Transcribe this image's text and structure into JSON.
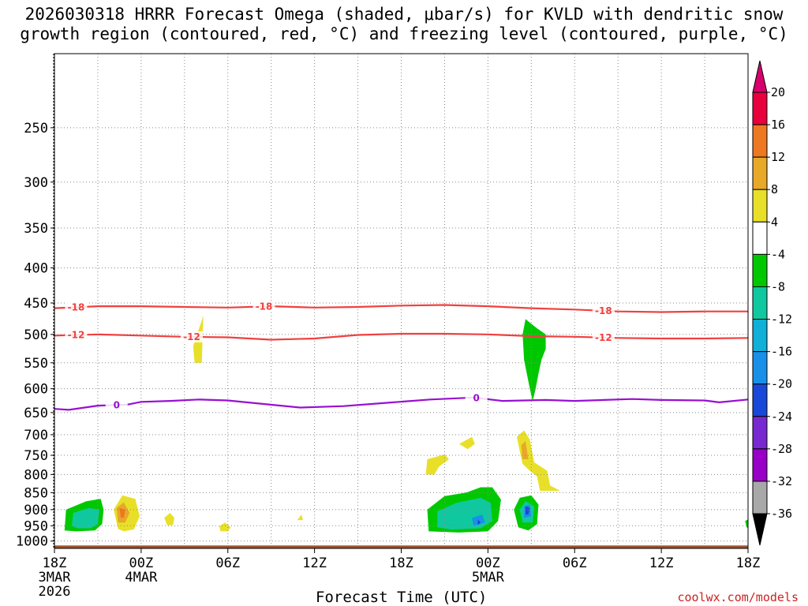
{
  "chart_data": {
    "type": "time-height contour",
    "title_line1": "2026030318 HRRR Forecast Omega (shaded, μbar/s) for KVLD with dendritic snow",
    "title_line2": "growth region (contoured, red, °C) and freezing level (contoured, purple, °C)",
    "xlabel": "Forecast Time (UTC)",
    "credit": "coolwx.com/models",
    "x_range_hours": [
      0,
      48
    ],
    "x_ticks": [
      {
        "h": 0,
        "label": "18Z",
        "sub1": "3MAR",
        "sub2": "2026"
      },
      {
        "h": 6,
        "label": "00Z",
        "sub1": "4MAR",
        "sub2": ""
      },
      {
        "h": 12,
        "label": "06Z",
        "sub1": "",
        "sub2": ""
      },
      {
        "h": 18,
        "label": "12Z",
        "sub1": "",
        "sub2": ""
      },
      {
        "h": 24,
        "label": "18Z",
        "sub1": "",
        "sub2": ""
      },
      {
        "h": 30,
        "label": "00Z",
        "sub1": "5MAR",
        "sub2": ""
      },
      {
        "h": 36,
        "label": "06Z",
        "sub1": "",
        "sub2": ""
      },
      {
        "h": 42,
        "label": "12Z",
        "sub1": "",
        "sub2": ""
      },
      {
        "h": 48,
        "label": "18Z",
        "sub1": "",
        "sub2": ""
      }
    ],
    "y_range_hpa": [
      1025,
      195
    ],
    "y_ticks": [
      250,
      300,
      350,
      400,
      450,
      500,
      550,
      600,
      650,
      700,
      750,
      800,
      850,
      900,
      950,
      1000
    ],
    "surface_hpa": 1015,
    "colorbar": {
      "labels": [
        "20",
        "16",
        "12",
        "8",
        "4",
        "-4",
        "-8",
        "-12",
        "-16",
        "-20",
        "-24",
        "-28",
        "-32",
        "-36"
      ],
      "colors": [
        "#e8003c",
        "#ee7722",
        "#e8a828",
        "#e8e028",
        "#ffffff",
        "#00c800",
        "#10c8a0",
        "#10b0d8",
        "#1890e8",
        "#1848d8",
        "#7828d0",
        "#9800c8",
        "#a8a8a8"
      ],
      "top_arrow_color": "#d8006c",
      "bottom_arrow_color": "#000000"
    },
    "contours": [
      {
        "name": "dgz-18",
        "value": -18,
        "color": "#f04040",
        "label": "-18",
        "label_hours": [
          1.5,
          14.5,
          38
        ],
        "points": [
          [
            0,
            458
          ],
          [
            3,
            455
          ],
          [
            6,
            455
          ],
          [
            9,
            456
          ],
          [
            12,
            457
          ],
          [
            15,
            455
          ],
          [
            18,
            457
          ],
          [
            21,
            456
          ],
          [
            24,
            454
          ],
          [
            27,
            453
          ],
          [
            30,
            455
          ],
          [
            33,
            458
          ],
          [
            36,
            460
          ],
          [
            39,
            463
          ],
          [
            42,
            464
          ],
          [
            45,
            463
          ],
          [
            48,
            463
          ]
        ]
      },
      {
        "name": "dgz-12",
        "value": -12,
        "color": "#f04040",
        "label": "-12",
        "label_hours": [
          1.5,
          9.5,
          38
        ],
        "points": [
          [
            0,
            502
          ],
          [
            3,
            500
          ],
          [
            6,
            502
          ],
          [
            9,
            504
          ],
          [
            12,
            505
          ],
          [
            15,
            509
          ],
          [
            18,
            507
          ],
          [
            21,
            501
          ],
          [
            24,
            499
          ],
          [
            27,
            499
          ],
          [
            30,
            500
          ],
          [
            33,
            503
          ],
          [
            36,
            504
          ],
          [
            39,
            506
          ],
          [
            42,
            507
          ],
          [
            45,
            507
          ],
          [
            48,
            506
          ]
        ]
      },
      {
        "name": "freezing-level",
        "value": 0,
        "color": "#9810d0",
        "label": "0",
        "label_hours": [
          4.3,
          29.2
        ],
        "points": [
          [
            0,
            642
          ],
          [
            1,
            644
          ],
          [
            3,
            635
          ],
          [
            5,
            633
          ],
          [
            6,
            627
          ],
          [
            8,
            625
          ],
          [
            10,
            622
          ],
          [
            12,
            624
          ],
          [
            14,
            630
          ],
          [
            17,
            639
          ],
          [
            20,
            636
          ],
          [
            23,
            629
          ],
          [
            26,
            622
          ],
          [
            29,
            618
          ],
          [
            31,
            625
          ],
          [
            34,
            623
          ],
          [
            36,
            625
          ],
          [
            38,
            623
          ],
          [
            40,
            621
          ],
          [
            42,
            623
          ],
          [
            45,
            624
          ],
          [
            46,
            628
          ],
          [
            48,
            622
          ]
        ]
      }
    ],
    "omega_regions": [
      {
        "level": -8,
        "color": "#00c800",
        "points": [
          [
            0.7,
            965
          ],
          [
            0.8,
            900
          ],
          [
            2.2,
            875
          ],
          [
            3.2,
            868
          ],
          [
            3.4,
            900
          ],
          [
            3.3,
            945
          ],
          [
            2.8,
            965
          ],
          [
            1.5,
            968
          ]
        ]
      },
      {
        "level": -12,
        "color": "#10c8a0",
        "points": [
          [
            1.2,
            950
          ],
          [
            1.3,
            910
          ],
          [
            2.4,
            895
          ],
          [
            3.1,
            900
          ],
          [
            3.0,
            945
          ],
          [
            2.5,
            958
          ],
          [
            1.6,
            958
          ]
        ]
      },
      {
        "level": 4,
        "color": "#e8e028",
        "points": [
          [
            4.4,
            960
          ],
          [
            4.1,
            900
          ],
          [
            4.7,
            858
          ],
          [
            5.6,
            868
          ],
          [
            5.9,
            920
          ],
          [
            5.5,
            962
          ],
          [
            4.8,
            968
          ]
        ]
      },
      {
        "level": 8,
        "color": "#e8a828",
        "points": [
          [
            4.4,
            940
          ],
          [
            4.3,
            895
          ],
          [
            4.8,
            878
          ],
          [
            5.2,
            910
          ],
          [
            4.9,
            940
          ]
        ]
      },
      {
        "level": 12,
        "color": "#ee7722",
        "points": [
          [
            4.6,
            925
          ],
          [
            4.5,
            895
          ],
          [
            4.9,
            900
          ],
          [
            4.8,
            925
          ]
        ]
      },
      {
        "level": 4,
        "color": "#e8e028",
        "points": [
          [
            7.8,
            948
          ],
          [
            7.6,
            925
          ],
          [
            8.0,
            910
          ],
          [
            8.3,
            925
          ],
          [
            8.2,
            948
          ]
        ]
      },
      {
        "level": 4,
        "color": "#e8e028",
        "points": [
          [
            11.5,
            968
          ],
          [
            11.4,
            952
          ],
          [
            11.8,
            940
          ],
          [
            12.2,
            955
          ],
          [
            12.0,
            968
          ]
        ]
      },
      {
        "level": 4,
        "color": "#e8e028",
        "points": [
          [
            9.7,
            550
          ],
          [
            9.6,
            520
          ],
          [
            10.3,
            470
          ],
          [
            10.2,
            550
          ]
        ]
      },
      {
        "level": 4,
        "color": "#e8e028",
        "points": [
          [
            16.8,
            932
          ],
          [
            17.1,
            915
          ],
          [
            17.2,
            932
          ]
        ]
      },
      {
        "level": -8,
        "color": "#00c800",
        "points": [
          [
            25.9,
            968
          ],
          [
            25.8,
            900
          ],
          [
            27.0,
            860
          ],
          [
            28.5,
            850
          ],
          [
            29.5,
            835
          ],
          [
            30.3,
            835
          ],
          [
            30.9,
            870
          ],
          [
            30.7,
            935
          ],
          [
            30.0,
            968
          ],
          [
            28.0,
            972
          ]
        ]
      },
      {
        "level": -12,
        "color": "#10c8a0",
        "points": [
          [
            26.5,
            955
          ],
          [
            26.5,
            905
          ],
          [
            27.8,
            880
          ],
          [
            29.5,
            865
          ],
          [
            30.2,
            880
          ],
          [
            30.3,
            935
          ],
          [
            29.5,
            958
          ],
          [
            27.5,
            962
          ]
        ]
      },
      {
        "level": -16,
        "color": "#1890e8",
        "points": [
          [
            29.0,
            950
          ],
          [
            28.9,
            925
          ],
          [
            29.6,
            915
          ],
          [
            29.8,
            940
          ]
        ]
      },
      {
        "level": -20,
        "color": "#1848d8",
        "points": [
          [
            29.3,
            948
          ],
          [
            29.3,
            930
          ],
          [
            29.5,
            940
          ]
        ]
      },
      {
        "level": -8,
        "color": "#00c800",
        "points": [
          [
            32.6,
            475
          ],
          [
            33.4,
            490
          ],
          [
            34.0,
            500
          ],
          [
            34.0,
            525
          ],
          [
            33.7,
            545
          ],
          [
            33.5,
            570
          ],
          [
            33.3,
            600
          ],
          [
            33.1,
            625
          ],
          [
            32.9,
            600
          ],
          [
            32.5,
            545
          ],
          [
            32.4,
            500
          ]
        ]
      },
      {
        "level": -8,
        "color": "#00c800",
        "points": [
          [
            32.1,
            955
          ],
          [
            31.8,
            900
          ],
          [
            32.2,
            865
          ],
          [
            33.0,
            858
          ],
          [
            33.5,
            885
          ],
          [
            33.4,
            945
          ],
          [
            32.8,
            965
          ]
        ]
      },
      {
        "level": -12,
        "color": "#10c8a0",
        "points": [
          [
            32.4,
            940
          ],
          [
            32.2,
            900
          ],
          [
            32.6,
            875
          ],
          [
            33.2,
            890
          ],
          [
            33.1,
            940
          ]
        ]
      },
      {
        "level": -16,
        "color": "#1890e8",
        "points": [
          [
            32.5,
            925
          ],
          [
            32.5,
            890
          ],
          [
            32.9,
            885
          ],
          [
            33.0,
            920
          ]
        ]
      },
      {
        "level": -20,
        "color": "#1848d8",
        "points": [
          [
            32.6,
            915
          ],
          [
            32.6,
            890
          ],
          [
            32.9,
            895
          ],
          [
            32.8,
            915
          ]
        ]
      },
      {
        "level": -24,
        "color": "#7828d0",
        "points": [
          [
            32.7,
            905
          ],
          [
            32.7,
            893
          ],
          [
            32.8,
            905
          ]
        ]
      },
      {
        "level": 4,
        "color": "#e8e028",
        "points": [
          [
            25.7,
            800
          ],
          [
            25.8,
            760
          ],
          [
            27.0,
            748
          ],
          [
            27.3,
            760
          ],
          [
            26.6,
            780
          ],
          [
            26.3,
            800
          ]
        ]
      },
      {
        "level": 4,
        "color": "#e8e028",
        "points": [
          [
            28.0,
            722
          ],
          [
            28.9,
            705
          ],
          [
            29.1,
            722
          ],
          [
            28.6,
            735
          ]
        ]
      },
      {
        "level": 4,
        "color": "#e8e028",
        "points": [
          [
            32.2,
            740
          ],
          [
            32.0,
            705
          ],
          [
            32.5,
            690
          ],
          [
            32.9,
            712
          ],
          [
            33.2,
            768
          ],
          [
            34.1,
            790
          ],
          [
            34.3,
            830
          ],
          [
            35.0,
            845
          ],
          [
            33.6,
            845
          ],
          [
            33.4,
            805
          ],
          [
            32.9,
            790
          ],
          [
            32.4,
            772
          ]
        ]
      },
      {
        "level": 8,
        "color": "#e8a828",
        "points": [
          [
            32.4,
            760
          ],
          [
            32.3,
            725
          ],
          [
            32.6,
            715
          ],
          [
            32.8,
            760
          ]
        ]
      },
      {
        "level": -8,
        "color": "#00c800",
        "points": [
          [
            47.9,
            955
          ],
          [
            47.8,
            935
          ],
          [
            48,
            930
          ],
          [
            48,
            958
          ]
        ]
      }
    ]
  }
}
